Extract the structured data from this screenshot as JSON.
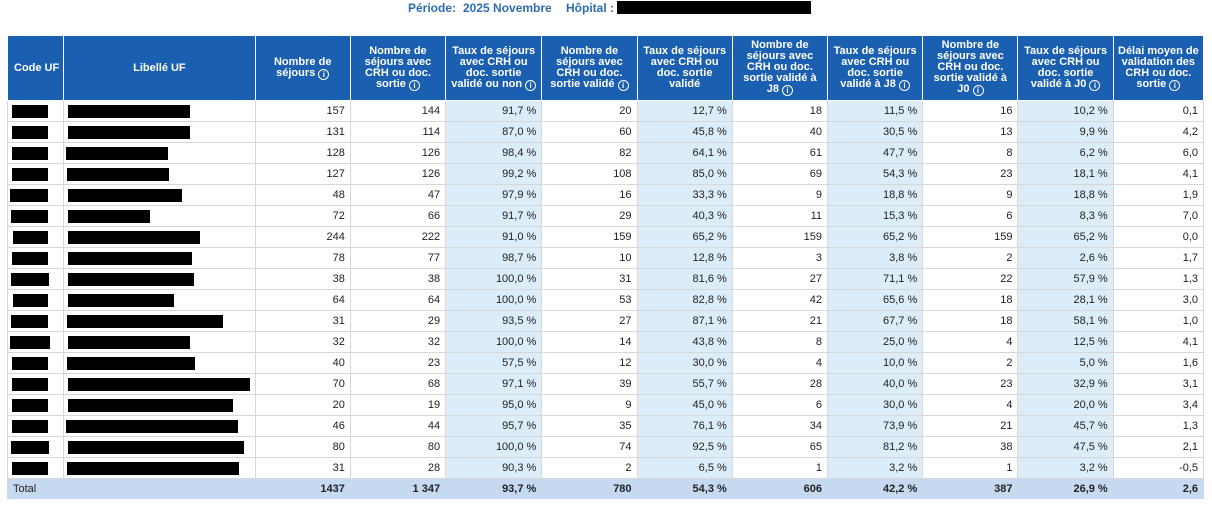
{
  "header": {
    "periode_label": "Période:",
    "periode_value": "2025 Novembre",
    "hopital_label": "Hôpital :"
  },
  "columns": [
    {
      "label": "Code UF",
      "info": false
    },
    {
      "label": "Libellé UF",
      "info": false
    },
    {
      "label": "Nombre de séjours",
      "info": true
    },
    {
      "label": "Nombre de séjours avec CRH ou doc. sortie",
      "info": true
    },
    {
      "label": "Taux de séjours avec CRH ou doc. sortie validé ou non",
      "info": true
    },
    {
      "label": "Nombre de séjours avec CRH ou doc. sortie validé",
      "info": true
    },
    {
      "label": "Taux de séjours avec CRH ou doc. sortie validé",
      "info": false
    },
    {
      "label": "Nombre de séjours avec CRH ou doc. sortie validé à J8",
      "info": true
    },
    {
      "label": "Taux de séjours avec CRH ou doc. sortie validé à J8",
      "info": true
    },
    {
      "label": "Nombre de séjours avec CRH ou doc. sortie validé à J0",
      "info": true
    },
    {
      "label": "Taux de séjours avec CRH ou doc. sortie validé à J0",
      "info": true
    },
    {
      "label": "Délai moyen de validation des CRH ou doc. sortie",
      "info": true
    }
  ],
  "info_glyph": "i",
  "rows": [
    [
      "157",
      "144",
      "91,7 %",
      "20",
      "12,7 %",
      "18",
      "11,5 %",
      "16",
      "10,2 %",
      "0,1"
    ],
    [
      "131",
      "114",
      "87,0 %",
      "60",
      "45,8 %",
      "40",
      "30,5 %",
      "13",
      "9,9 %",
      "4,2"
    ],
    [
      "128",
      "126",
      "98,4 %",
      "82",
      "64,1 %",
      "61",
      "47,7 %",
      "8",
      "6,2 %",
      "6,0"
    ],
    [
      "127",
      "126",
      "99,2 %",
      "108",
      "85,0 %",
      "69",
      "54,3 %",
      "23",
      "18,1 %",
      "4,1"
    ],
    [
      "48",
      "47",
      "97,9 %",
      "16",
      "33,3 %",
      "9",
      "18,8 %",
      "9",
      "18,8 %",
      "1,9"
    ],
    [
      "72",
      "66",
      "91,7 %",
      "29",
      "40,3 %",
      "11",
      "15,3 %",
      "6",
      "8,3 %",
      "7,0"
    ],
    [
      "244",
      "222",
      "91,0 %",
      "159",
      "65,2 %",
      "159",
      "65,2 %",
      "159",
      "65,2 %",
      "0,0"
    ],
    [
      "78",
      "77",
      "98,7 %",
      "10",
      "12,8 %",
      "3",
      "3,8 %",
      "2",
      "2,6 %",
      "1,7"
    ],
    [
      "38",
      "38",
      "100,0 %",
      "31",
      "81,6 %",
      "27",
      "71,1 %",
      "22",
      "57,9 %",
      "1,3"
    ],
    [
      "64",
      "64",
      "100,0 %",
      "53",
      "82,8 %",
      "42",
      "65,6 %",
      "18",
      "28,1 %",
      "3,0"
    ],
    [
      "31",
      "29",
      "93,5 %",
      "27",
      "87,1 %",
      "21",
      "67,7 %",
      "18",
      "58,1 %",
      "1,0"
    ],
    [
      "32",
      "32",
      "100,0 %",
      "14",
      "43,8 %",
      "8",
      "25,0 %",
      "4",
      "12,5 %",
      "4,1"
    ],
    [
      "40",
      "23",
      "57,5 %",
      "12",
      "30,0 %",
      "4",
      "10,0 %",
      "2",
      "5,0 %",
      "1,6"
    ],
    [
      "70",
      "68",
      "97,1 %",
      "39",
      "55,7 %",
      "28",
      "40,0 %",
      "23",
      "32,9 %",
      "3,1"
    ],
    [
      "20",
      "19",
      "95,0 %",
      "9",
      "45,0 %",
      "6",
      "30,0 %",
      "4",
      "20,0 %",
      "3,4"
    ],
    [
      "46",
      "44",
      "95,7 %",
      "35",
      "76,1 %",
      "34",
      "73,9 %",
      "21",
      "45,7 %",
      "1,3"
    ],
    [
      "80",
      "80",
      "100,0 %",
      "74",
      "92,5 %",
      "65",
      "81,2 %",
      "38",
      "47,5 %",
      "2,1"
    ],
    [
      "31",
      "28",
      "90,3 %",
      "2",
      "6,5 %",
      "1",
      "3,2 %",
      "1",
      "3,2 %",
      "-0,5"
    ]
  ],
  "total": {
    "label": "Total",
    "values": [
      "1437",
      "1 347",
      "93,7 %",
      "780",
      "54,3 %",
      "606",
      "42,2 %",
      "387",
      "26,9 %",
      "2,6"
    ]
  },
  "colors": {
    "header_bg": "#1a5fb0",
    "title_text": "#2e6db4",
    "rate_cell_bg": "#dcecf8",
    "total_row_bg": "#c5daf0",
    "redaction": "#000000"
  }
}
